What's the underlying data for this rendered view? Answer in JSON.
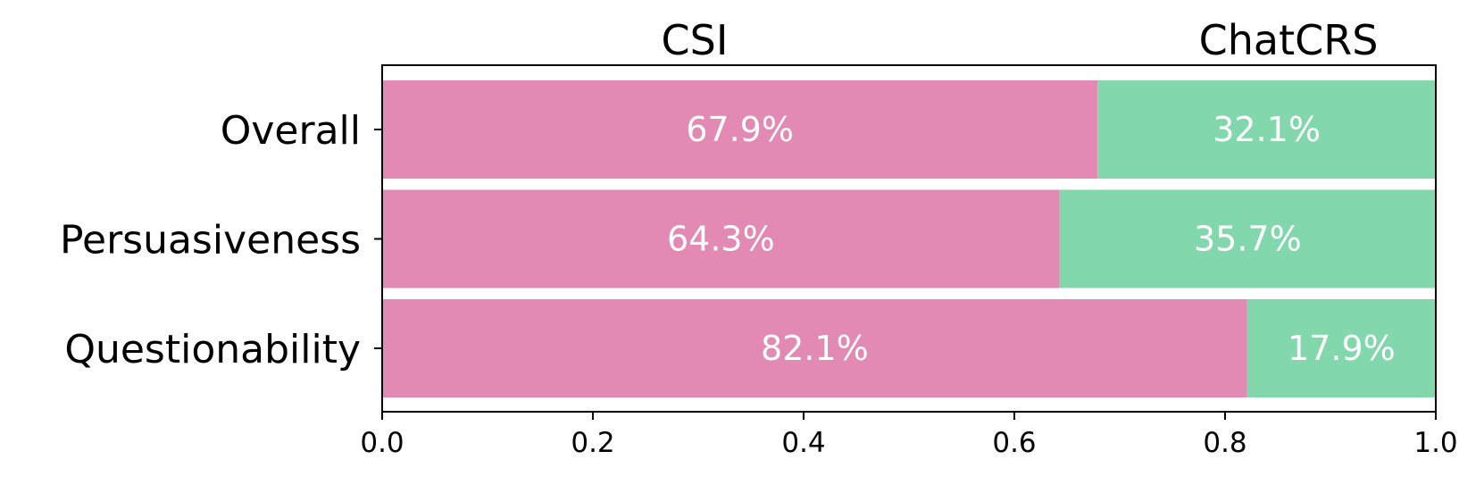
{
  "chart_data": {
    "type": "bar",
    "orientation": "horizontal",
    "stacked": true,
    "normalized": true,
    "categories": [
      "Overall",
      "Persuasiveness",
      "Questionability"
    ],
    "series": [
      {
        "name": "CSI",
        "values": [
          0.679,
          0.643,
          0.821
        ],
        "labels": [
          "67.9%",
          "64.3%",
          "82.1%"
        ],
        "color": "#E289B4"
      },
      {
        "name": "ChatCRS",
        "values": [
          0.321,
          0.357,
          0.179
        ],
        "labels": [
          "32.1%",
          "35.7%",
          "17.9%"
        ],
        "color": "#82D8AC"
      }
    ],
    "xlim": [
      0,
      1
    ],
    "xticks": [
      "0.0",
      "0.2",
      "0.4",
      "0.6",
      "0.8",
      "1.0"
    ],
    "legend": "top, above plot",
    "grid": false,
    "data_label_color": "#ffffff"
  }
}
